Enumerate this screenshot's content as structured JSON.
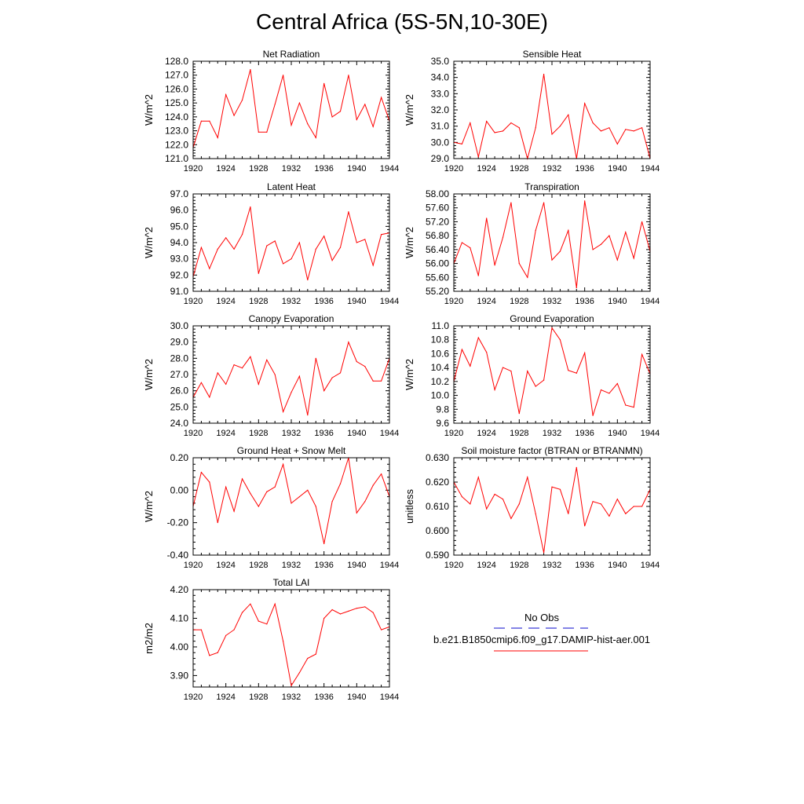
{
  "title": "Central Africa (5S-5N,10-30E)",
  "legend": {
    "obs_label": "No Obs",
    "model_label": "b.e21.B1850cmip6.f09_g17.DAMIP-hist-aer.001",
    "obs_color": "#3b3bd6",
    "model_color": "#ff0000"
  },
  "chart_data": [
    {
      "type": "line",
      "title": "Net Radiation",
      "ylabel": "W/m^2",
      "xlim": [
        1920,
        1944
      ],
      "ylim": [
        121.0,
        128.0
      ],
      "xticks": [
        1920,
        1924,
        1928,
        1932,
        1936,
        1940,
        1944
      ],
      "yticks": [
        "121.0",
        "122.0",
        "123.0",
        "124.0",
        "125.0",
        "126.0",
        "127.0",
        "128.0"
      ],
      "series": [
        {
          "color": "#ff0000",
          "x": [
            1920,
            1921,
            1922,
            1923,
            1924,
            1925,
            1926,
            1927,
            1928,
            1929,
            1930,
            1931,
            1932,
            1933,
            1934,
            1935,
            1936,
            1937,
            1938,
            1939,
            1940,
            1941,
            1942,
            1943,
            1944
          ],
          "y": [
            121.8,
            123.7,
            123.7,
            122.5,
            125.6,
            124.1,
            125.2,
            127.4,
            122.9,
            122.9,
            124.9,
            127.0,
            123.4,
            125.0,
            123.5,
            122.5,
            126.4,
            124.0,
            124.4,
            127.0,
            123.8,
            124.9,
            123.3,
            125.4,
            123.7
          ]
        }
      ]
    },
    {
      "type": "line",
      "title": "Sensible Heat",
      "ylabel": "W/m^2",
      "xlim": [
        1920,
        1944
      ],
      "ylim": [
        29.0,
        35.0
      ],
      "xticks": [
        1920,
        1924,
        1928,
        1932,
        1936,
        1940,
        1944
      ],
      "yticks": [
        "29.0",
        "30.0",
        "31.0",
        "32.0",
        "33.0",
        "34.0",
        "35.0"
      ],
      "series": [
        {
          "color": "#ff0000",
          "x": [
            1920,
            1921,
            1922,
            1923,
            1924,
            1925,
            1926,
            1927,
            1928,
            1929,
            1930,
            1931,
            1932,
            1933,
            1934,
            1935,
            1936,
            1937,
            1938,
            1939,
            1940,
            1941,
            1942,
            1943,
            1944
          ],
          "y": [
            30.0,
            29.9,
            31.2,
            29.1,
            31.3,
            30.6,
            30.7,
            31.2,
            30.9,
            29.0,
            30.9,
            34.2,
            30.5,
            31.0,
            31.7,
            29.0,
            32.4,
            31.2,
            30.7,
            30.9,
            29.9,
            30.8,
            30.7,
            30.9,
            29.0
          ]
        }
      ]
    },
    {
      "type": "line",
      "title": "Latent Heat",
      "ylabel": "W/m^2",
      "xlim": [
        1920,
        1944
      ],
      "ylim": [
        91.0,
        97.0
      ],
      "xticks": [
        1920,
        1924,
        1928,
        1932,
        1936,
        1940,
        1944
      ],
      "yticks": [
        "91.0",
        "92.0",
        "93.0",
        "94.0",
        "95.0",
        "96.0",
        "97.0"
      ],
      "series": [
        {
          "color": "#ff0000",
          "x": [
            1920,
            1921,
            1922,
            1923,
            1924,
            1925,
            1926,
            1927,
            1928,
            1929,
            1930,
            1931,
            1932,
            1933,
            1934,
            1935,
            1936,
            1937,
            1938,
            1939,
            1940,
            1941,
            1942,
            1943,
            1944
          ],
          "y": [
            91.9,
            93.7,
            92.4,
            93.6,
            94.3,
            93.6,
            94.5,
            96.2,
            92.1,
            93.8,
            94.1,
            92.7,
            93.0,
            94.0,
            91.7,
            93.6,
            94.4,
            92.9,
            93.7,
            95.9,
            94.0,
            94.2,
            92.6,
            94.5,
            94.6
          ]
        }
      ]
    },
    {
      "type": "line",
      "title": "Transpiration",
      "ylabel": "W/m^2",
      "xlim": [
        1920,
        1944
      ],
      "ylim": [
        55.2,
        58.0
      ],
      "xticks": [
        1920,
        1924,
        1928,
        1932,
        1936,
        1940,
        1944
      ],
      "yticks": [
        "55.20",
        "55.60",
        "56.00",
        "56.40",
        "56.80",
        "57.20",
        "57.60",
        "58.00"
      ],
      "series": [
        {
          "color": "#ff0000",
          "x": [
            1920,
            1921,
            1922,
            1923,
            1924,
            1925,
            1926,
            1927,
            1928,
            1929,
            1930,
            1931,
            1932,
            1933,
            1934,
            1935,
            1936,
            1937,
            1938,
            1939,
            1940,
            1941,
            1942,
            1943,
            1944
          ],
          "y": [
            56.0,
            56.6,
            56.45,
            55.65,
            57.3,
            55.95,
            56.75,
            57.75,
            56.0,
            55.6,
            56.95,
            57.75,
            56.1,
            56.35,
            56.95,
            55.3,
            57.8,
            56.4,
            56.55,
            56.8,
            56.1,
            56.9,
            56.15,
            57.2,
            56.35
          ]
        }
      ]
    },
    {
      "type": "line",
      "title": "Canopy Evaporation",
      "ylabel": "W/m^2",
      "xlim": [
        1920,
        1944
      ],
      "ylim": [
        24.0,
        30.0
      ],
      "xticks": [
        1920,
        1924,
        1928,
        1932,
        1936,
        1940,
        1944
      ],
      "yticks": [
        "24.0",
        "25.0",
        "26.0",
        "27.0",
        "28.0",
        "29.0",
        "30.0"
      ],
      "series": [
        {
          "color": "#ff0000",
          "x": [
            1920,
            1921,
            1922,
            1923,
            1924,
            1925,
            1926,
            1927,
            1928,
            1929,
            1930,
            1931,
            1932,
            1933,
            1934,
            1935,
            1936,
            1937,
            1938,
            1939,
            1940,
            1941,
            1942,
            1943,
            1944
          ],
          "y": [
            25.6,
            26.5,
            25.6,
            27.1,
            26.4,
            27.6,
            27.4,
            28.1,
            26.4,
            27.9,
            27.0,
            24.7,
            25.9,
            26.9,
            24.5,
            28.0,
            26.0,
            26.8,
            27.1,
            29.0,
            27.8,
            27.5,
            26.6,
            26.6,
            28.0
          ]
        }
      ]
    },
    {
      "type": "line",
      "title": "Ground Evaporation",
      "ylabel": "W/m^2",
      "xlim": [
        1920,
        1944
      ],
      "ylim": [
        9.6,
        11.0
      ],
      "xticks": [
        1920,
        1924,
        1928,
        1932,
        1936,
        1940,
        1944
      ],
      "yticks": [
        "9.6",
        "9.8",
        "10.0",
        "10.2",
        "10.4",
        "10.6",
        "10.8",
        "11.0"
      ],
      "series": [
        {
          "color": "#ff0000",
          "x": [
            1920,
            1921,
            1922,
            1923,
            1924,
            1925,
            1926,
            1927,
            1928,
            1929,
            1930,
            1931,
            1932,
            1933,
            1934,
            1935,
            1936,
            1937,
            1938,
            1939,
            1940,
            1941,
            1942,
            1943,
            1944
          ],
          "y": [
            10.2,
            10.66,
            10.42,
            10.83,
            10.62,
            10.08,
            10.4,
            10.35,
            9.74,
            10.35,
            10.13,
            10.22,
            10.97,
            10.8,
            10.36,
            10.32,
            10.61,
            9.71,
            10.08,
            10.03,
            10.17,
            9.86,
            9.83,
            10.59,
            10.31
          ]
        }
      ]
    },
    {
      "type": "line",
      "title": "Ground Heat + Snow Melt",
      "ylabel": "W/m^2",
      "xlim": [
        1920,
        1944
      ],
      "ylim": [
        -0.4,
        0.2
      ],
      "xticks": [
        1920,
        1924,
        1928,
        1932,
        1936,
        1940,
        1944
      ],
      "yticks": [
        "-0.40",
        "-0.20",
        "0.00",
        "0.20"
      ],
      "series": [
        {
          "color": "#ff0000",
          "x": [
            1920,
            1921,
            1922,
            1923,
            1924,
            1925,
            1926,
            1927,
            1928,
            1929,
            1930,
            1931,
            1932,
            1933,
            1934,
            1935,
            1936,
            1937,
            1938,
            1939,
            1940,
            1941,
            1942,
            1943,
            1944
          ],
          "y": [
            -0.1,
            0.11,
            0.05,
            -0.2,
            0.02,
            -0.13,
            0.07,
            -0.02,
            -0.1,
            -0.01,
            0.02,
            0.16,
            -0.08,
            -0.04,
            0.0,
            -0.1,
            -0.33,
            -0.07,
            0.04,
            0.2,
            -0.14,
            -0.07,
            0.03,
            0.1,
            -0.04
          ]
        }
      ]
    },
    {
      "type": "line",
      "title": "Soil moisture factor (BTRAN or BTRANMN)",
      "ylabel": "unitless",
      "xlim": [
        1920,
        1944
      ],
      "ylim": [
        0.59,
        0.63
      ],
      "xticks": [
        1920,
        1924,
        1928,
        1932,
        1936,
        1940,
        1944
      ],
      "yticks": [
        "0.590",
        "0.600",
        "0.610",
        "0.620",
        "0.630"
      ],
      "series": [
        {
          "color": "#ff0000",
          "x": [
            1920,
            1921,
            1922,
            1923,
            1924,
            1925,
            1926,
            1927,
            1928,
            1929,
            1930,
            1931,
            1932,
            1933,
            1934,
            1935,
            1936,
            1937,
            1938,
            1939,
            1940,
            1941,
            1942,
            1943,
            1944
          ],
          "y": [
            0.62,
            0.614,
            0.611,
            0.622,
            0.609,
            0.615,
            0.613,
            0.605,
            0.611,
            0.622,
            0.607,
            0.591,
            0.618,
            0.617,
            0.607,
            0.626,
            0.602,
            0.612,
            0.611,
            0.606,
            0.613,
            0.607,
            0.61,
            0.61,
            0.617
          ]
        }
      ]
    },
    {
      "type": "line",
      "title": "Total LAI",
      "ylabel": "m2/m2",
      "xlim": [
        1920,
        1944
      ],
      "ylim": [
        3.86,
        4.2
      ],
      "xticks": [
        1920,
        1924,
        1928,
        1932,
        1936,
        1940,
        1944
      ],
      "yticks": [
        "3.90",
        "4.00",
        "4.10",
        "4.20"
      ],
      "series": [
        {
          "color": "#ff0000",
          "x": [
            1920,
            1921,
            1922,
            1923,
            1924,
            1925,
            1926,
            1927,
            1928,
            1929,
            1930,
            1931,
            1932,
            1933,
            1934,
            1935,
            1936,
            1937,
            1938,
            1939,
            1940,
            1941,
            1942,
            1943,
            1944
          ],
          "y": [
            4.06,
            4.06,
            3.97,
            3.98,
            4.04,
            4.06,
            4.12,
            4.15,
            4.09,
            4.08,
            4.15,
            4.02,
            3.865,
            3.91,
            3.96,
            3.975,
            4.1,
            4.13,
            4.115,
            4.125,
            4.135,
            4.14,
            4.12,
            4.06,
            4.07
          ]
        }
      ]
    }
  ]
}
